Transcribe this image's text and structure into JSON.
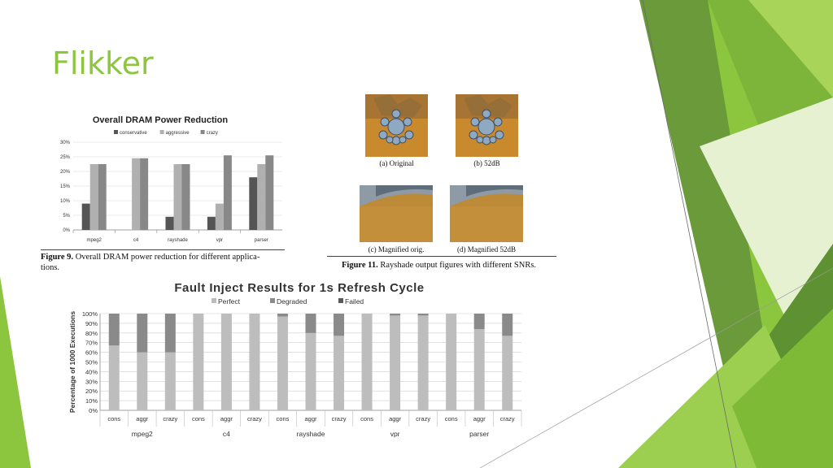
{
  "slide": {
    "title": "Flikker"
  },
  "figure9": {
    "caption_label": "Figure 9.",
    "caption_text": "Overall DRAM power reduction for different applica-",
    "caption_text2": "tions."
  },
  "figure11": {
    "caption_label": "Figure 11.",
    "caption_text": "Rayshade output figures with different SNRs.",
    "panels": [
      {
        "label": "(a) Original"
      },
      {
        "label": "(b) 52dB"
      },
      {
        "label": "(c) Magnified orig."
      },
      {
        "label": "(d) Magnified 52dB"
      }
    ]
  },
  "chart_data": [
    {
      "type": "bar",
      "title": "Overall DRAM Power Reduction",
      "categories": [
        "mpeg2",
        "c4",
        "rayshade",
        "vpr",
        "parser"
      ],
      "series": [
        {
          "name": "conservative",
          "values": [
            9,
            0,
            4.5,
            4.5,
            18
          ],
          "color": "#555555"
        },
        {
          "name": "aggressive",
          "values": [
            22.5,
            24.5,
            22.5,
            9,
            22.5
          ],
          "color": "#b0b0b0"
        },
        {
          "name": "crazy",
          "values": [
            22.5,
            24.5,
            22.5,
            25.5,
            25.5
          ],
          "color": "#888888"
        }
      ],
      "yticks": [
        "0%",
        "5%",
        "10%",
        "15%",
        "20%",
        "25%",
        "30%"
      ],
      "ylim": [
        0,
        30
      ],
      "legend": "top",
      "grid": true
    },
    {
      "type": "bar",
      "stacked": true,
      "title": "Fault Inject Results for 1s Refresh Cycle",
      "ylabel": "Percentage of 1000 Executions",
      "groups": [
        "mpeg2",
        "c4",
        "rayshade",
        "vpr",
        "parser"
      ],
      "categories": [
        "cons",
        "aggr",
        "crazy",
        "cons",
        "aggr",
        "crazy",
        "cons",
        "aggr",
        "crazy",
        "cons",
        "aggr",
        "crazy",
        "cons",
        "aggr",
        "crazy"
      ],
      "series": [
        {
          "name": "Perfect",
          "color": "#bdbdbd",
          "values": [
            67,
            60,
            60,
            100,
            100,
            100,
            97,
            80,
            77,
            100,
            98,
            98,
            100,
            84,
            77
          ]
        },
        {
          "name": "Degraded",
          "color": "#8a8a8a",
          "values": [
            33,
            40,
            40,
            0,
            0,
            0,
            3,
            20,
            23,
            0,
            2,
            2,
            0,
            16,
            23
          ]
        },
        {
          "name": "Failed",
          "color": "#5a5a5a",
          "values": [
            0,
            0,
            0,
            0,
            0,
            0,
            0,
            0,
            0,
            0,
            0,
            0,
            0,
            0,
            0
          ]
        }
      ],
      "yticks": [
        "0%",
        "10%",
        "20%",
        "30%",
        "40%",
        "50%",
        "60%",
        "70%",
        "80%",
        "90%",
        "100%"
      ],
      "ylim": [
        0,
        100
      ],
      "legend": "top",
      "grid": true
    }
  ]
}
